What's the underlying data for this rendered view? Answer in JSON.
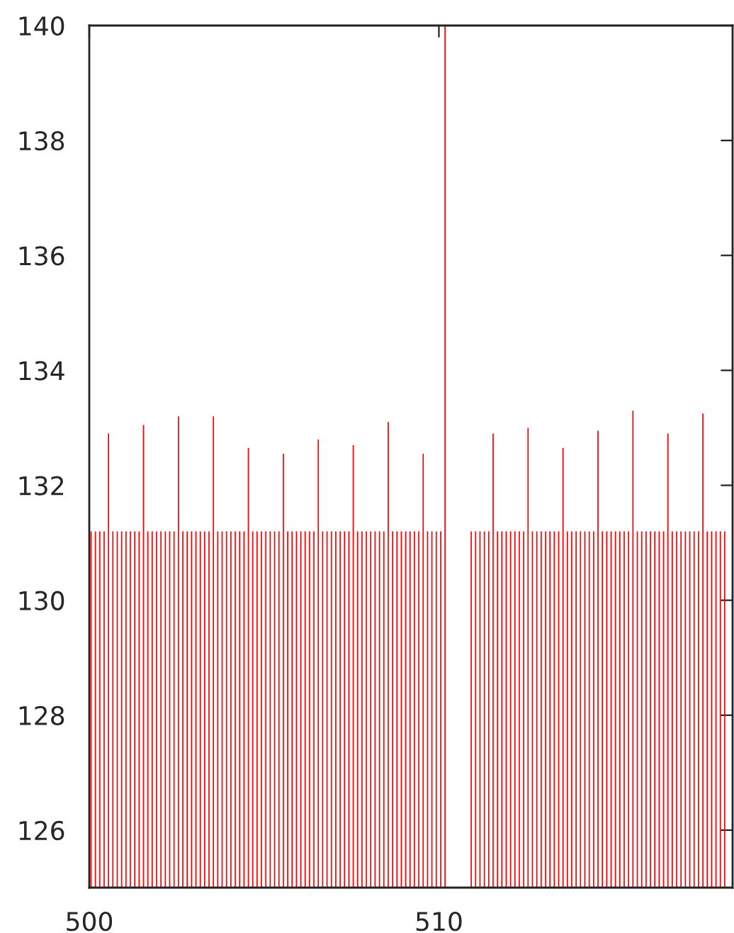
{
  "chart_data": {
    "type": "bar",
    "xlim": [
      500,
      518.4
    ],
    "xticks": [
      500,
      510
    ],
    "ylim": [
      125,
      140
    ],
    "yticks": [
      126,
      128,
      130,
      132,
      134,
      136,
      138,
      140
    ],
    "grid": false,
    "x": [
      500.05,
      500.175,
      500.3,
      500.425,
      500.55,
      500.675,
      500.8,
      500.925,
      501.05,
      501.175,
      501.3,
      501.425,
      501.55,
      501.675,
      501.8,
      501.925,
      502.05,
      502.175,
      502.3,
      502.425,
      502.55,
      502.675,
      502.8,
      502.925,
      503.05,
      503.175,
      503.3,
      503.425,
      503.55,
      503.675,
      503.8,
      503.925,
      504.05,
      504.175,
      504.3,
      504.425,
      504.55,
      504.675,
      504.8,
      504.925,
      505.05,
      505.175,
      505.3,
      505.425,
      505.55,
      505.675,
      505.8,
      505.925,
      506.05,
      506.175,
      506.3,
      506.425,
      506.55,
      506.675,
      506.8,
      506.925,
      507.05,
      507.175,
      507.3,
      507.425,
      507.55,
      507.675,
      507.8,
      507.925,
      508.05,
      508.175,
      508.3,
      508.425,
      508.55,
      508.675,
      508.8,
      508.925,
      509.05,
      509.175,
      509.3,
      509.425,
      509.55,
      509.675,
      509.8,
      509.925,
      510.05,
      510.175,
      510.925,
      511.05,
      511.175,
      511.3,
      511.425,
      511.55,
      511.675,
      511.8,
      511.925,
      512.05,
      512.175,
      512.3,
      512.425,
      512.55,
      512.675,
      512.8,
      512.925,
      513.05,
      513.175,
      513.3,
      513.425,
      513.55,
      513.675,
      513.8,
      513.925,
      514.05,
      514.175,
      514.3,
      514.425,
      514.55,
      514.675,
      514.8,
      514.925,
      515.05,
      515.175,
      515.3,
      515.425,
      515.55,
      515.675,
      515.8,
      515.925,
      516.05,
      516.175,
      516.3,
      516.425,
      516.55,
      516.675,
      516.8,
      516.925,
      517.05,
      517.175,
      517.3,
      517.425,
      517.55,
      517.675,
      517.8,
      517.925,
      518.05,
      518.175
    ],
    "series": [
      {
        "color": "#ff0000",
        "values": [
          131.2,
          131.2,
          131.2,
          131.2,
          132.9,
          131.2,
          131.2,
          131.2,
          131.2,
          131.2,
          131.2,
          131.2,
          133.05,
          131.2,
          131.2,
          131.2,
          131.2,
          131.2,
          131.2,
          131.2,
          133.2,
          131.2,
          131.2,
          131.2,
          131.2,
          131.2,
          131.2,
          131.2,
          133.2,
          131.2,
          131.2,
          131.2,
          131.2,
          131.2,
          131.2,
          131.2,
          132.65,
          131.2,
          131.2,
          131.2,
          131.2,
          131.2,
          131.2,
          131.2,
          132.55,
          131.2,
          131.2,
          131.2,
          131.2,
          131.2,
          131.2,
          131.2,
          132.8,
          131.2,
          131.2,
          131.2,
          131.2,
          131.2,
          131.2,
          131.2,
          132.7,
          131.2,
          131.2,
          131.2,
          131.2,
          131.2,
          131.2,
          131.2,
          133.1,
          131.2,
          131.2,
          131.2,
          131.2,
          131.2,
          131.2,
          131.2,
          132.55,
          131.2,
          131.2,
          131.2,
          131.2,
          140,
          131.2,
          131.2,
          131.2,
          131.2,
          131.2,
          132.9,
          131.2,
          131.2,
          131.2,
          131.2,
          131.2,
          131.2,
          131.2,
          133.0,
          131.2,
          131.2,
          131.2,
          131.2,
          131.2,
          131.2,
          131.2,
          132.65,
          131.2,
          131.2,
          131.2,
          131.2,
          131.2,
          131.2,
          131.2,
          132.95,
          131.2,
          131.2,
          131.2,
          131.2,
          131.2,
          131.2,
          131.2,
          133.3,
          131.2,
          131.2,
          131.2,
          131.2,
          131.2,
          131.2,
          131.2,
          132.9,
          131.2,
          131.2,
          131.2,
          131.2,
          131.2,
          131.2,
          131.2,
          133.25,
          131.2,
          131.2,
          131.2,
          131.2,
          131.2
        ]
      }
    ]
  }
}
